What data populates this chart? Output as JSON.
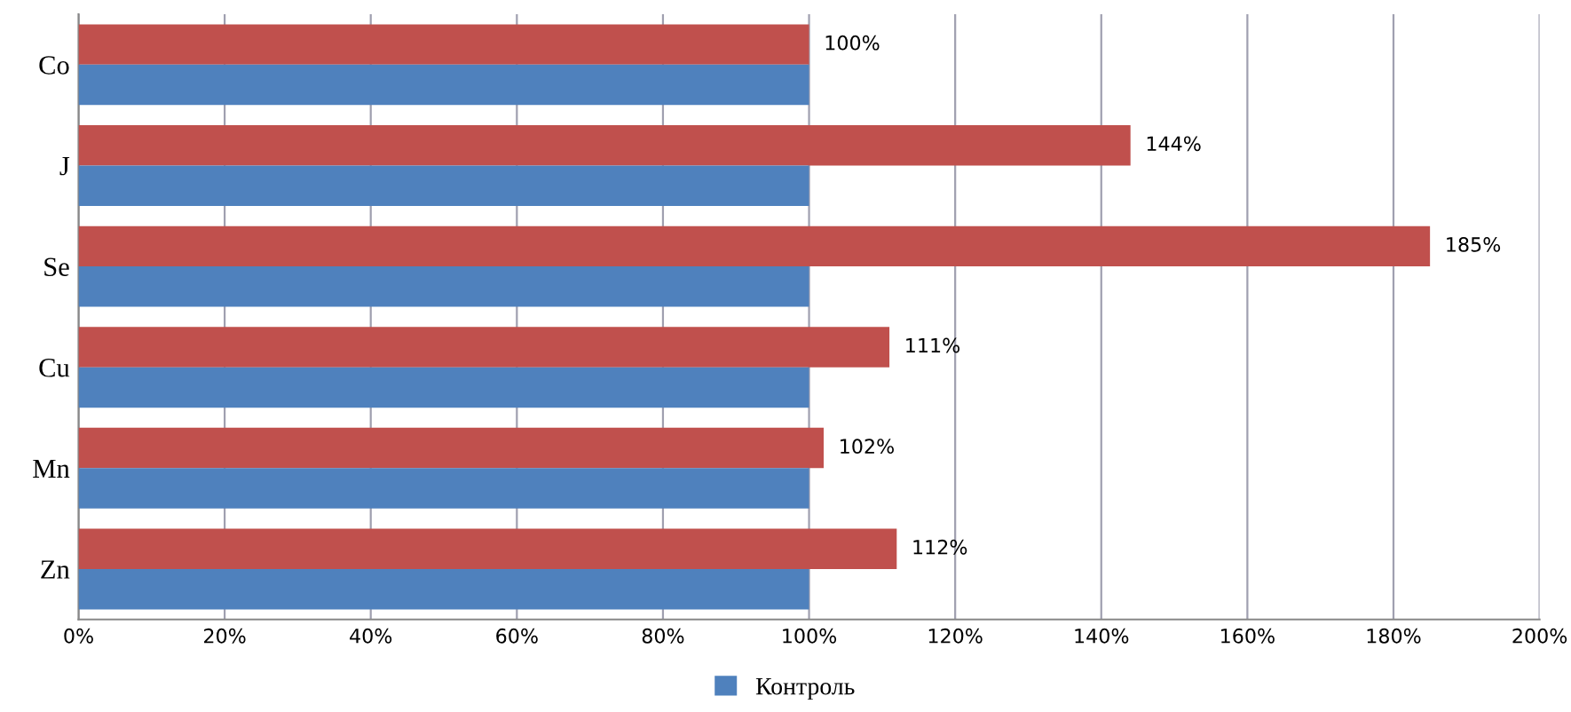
{
  "chart_data": {
    "type": "bar",
    "orientation": "horizontal",
    "categories": [
      "Co",
      "J",
      "Se",
      "Cu",
      "Mn",
      "Zn"
    ],
    "series": [
      {
        "color": "#c0504d",
        "values": [
          100,
          144,
          185,
          111,
          102,
          112
        ],
        "value_labels": [
          "100%",
          "144%",
          "185%",
          "111%",
          "102%",
          "112%"
        ]
      },
      {
        "name": "Контроль",
        "color": "#4f81bd",
        "values": [
          100,
          100,
          100,
          100,
          100,
          100
        ]
      }
    ],
    "xlim": [
      0,
      200
    ],
    "xticks": [
      {
        "value": 0,
        "label": "0%"
      },
      {
        "value": 20,
        "label": "20%"
      },
      {
        "value": 40,
        "label": "40%"
      },
      {
        "value": 60,
        "label": "60%"
      },
      {
        "value": 80,
        "label": "80%"
      },
      {
        "value": 100,
        "label": "100%"
      },
      {
        "value": 120,
        "label": "120%"
      },
      {
        "value": 140,
        "label": "140%"
      },
      {
        "value": 160,
        "label": "160%"
      },
      {
        "value": 180,
        "label": "180%"
      },
      {
        "value": 200,
        "label": "200%"
      }
    ],
    "grid": "x",
    "legend": "bottom"
  }
}
